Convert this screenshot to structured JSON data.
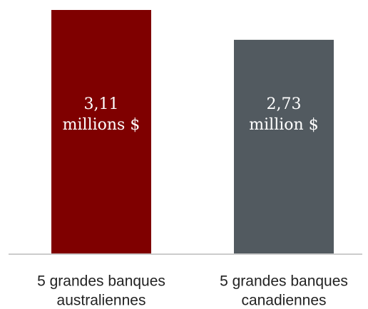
{
  "chart_data": {
    "type": "bar",
    "categories": [
      "5 grandes banques australiennes",
      "5 grandes banques canadiennes"
    ],
    "category_lines": [
      [
        "5 grandes banques",
        "australiennes"
      ],
      [
        "5 grandes banques",
        "canadiennes"
      ]
    ],
    "values": [
      3.11,
      2.73
    ],
    "value_labels": [
      [
        "3,11",
        "millions $"
      ],
      [
        "2,73",
        "million $"
      ]
    ],
    "colors": [
      "#7f0000",
      "#525a60"
    ],
    "axis_color": "#cccccc",
    "title": "",
    "xlabel": "",
    "ylabel": "",
    "ylim": [
      0,
      3.11
    ],
    "grid": false
  }
}
